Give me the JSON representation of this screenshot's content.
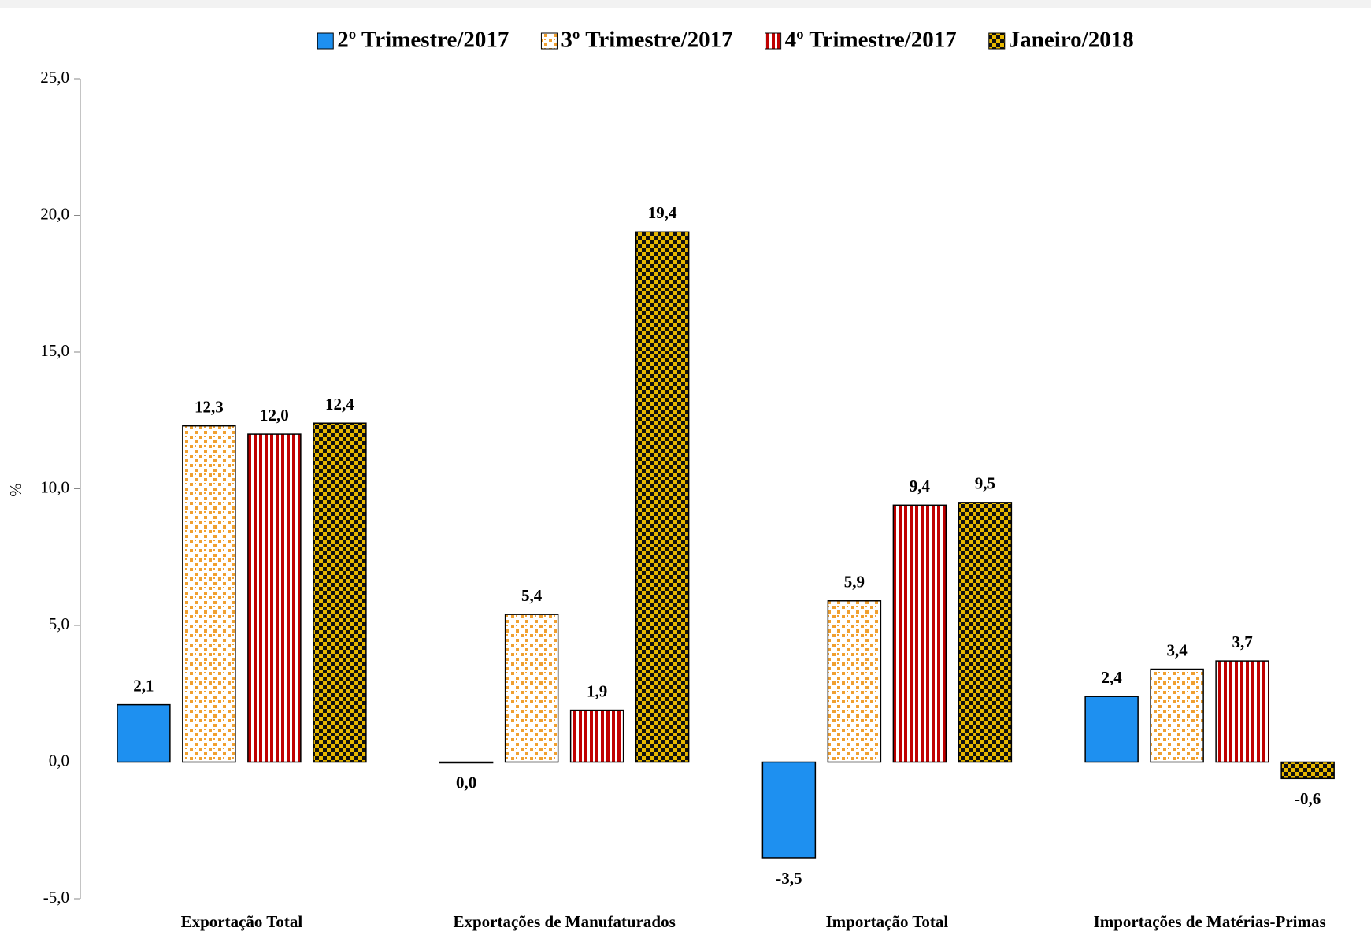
{
  "chart_data": {
    "type": "bar",
    "y_label": "%",
    "categories": [
      "Exportação Total",
      "Exportações de Manufaturados",
      "Importação Total",
      "Importações de Matérias-Primas"
    ],
    "series": [
      {
        "name": "2º Trimestre/2017",
        "color": "#1e90f0",
        "pattern": "solid",
        "values": [
          2.1,
          0.0,
          -3.5,
          2.4
        ],
        "value_labels": [
          "2,1",
          "0,0",
          "-3,5",
          "2,4"
        ]
      },
      {
        "name": "3º Trimestre/2017",
        "color": "#f0a030",
        "pattern": "dots",
        "values": [
          12.3,
          5.4,
          5.9,
          3.4
        ],
        "value_labels": [
          "12,3",
          "5,4",
          "5,9",
          "3,4"
        ]
      },
      {
        "name": "4º Trimestre/2017",
        "color": "#c00000",
        "pattern": "stripes",
        "values": [
          12.0,
          1.9,
          9.4,
          3.7
        ],
        "value_labels": [
          "12,0",
          "1,9",
          "9,4",
          "3,7"
        ]
      },
      {
        "name": "Janeiro/2018",
        "color": "#e8b800",
        "pattern": "checker",
        "values": [
          12.4,
          19.4,
          9.5,
          -0.6
        ],
        "value_labels": [
          "12,4",
          "19,4",
          "9,5",
          "-0,6"
        ]
      }
    ],
    "ylim": [
      -5,
      25
    ],
    "yticks": [
      {
        "value": -5,
        "label": "-5,0"
      },
      {
        "value": 0,
        "label": "0,0"
      },
      {
        "value": 5,
        "label": "5,0"
      },
      {
        "value": 10,
        "label": "10,0"
      },
      {
        "value": 15,
        "label": "15,0"
      },
      {
        "value": 20,
        "label": "20,0"
      },
      {
        "value": 25,
        "label": "25,0"
      }
    ],
    "grid": false
  }
}
